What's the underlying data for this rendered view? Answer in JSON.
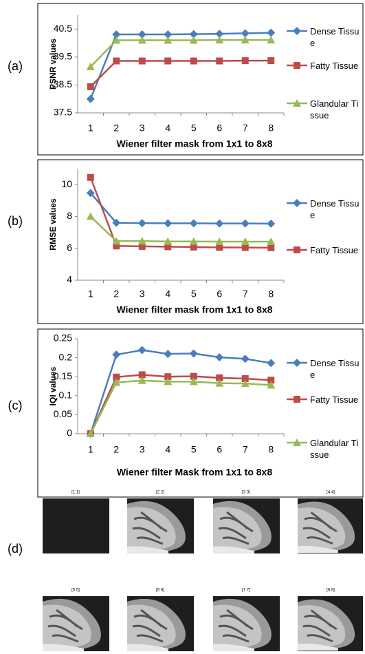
{
  "panel_labels": [
    "(a)",
    "(b)",
    "(c)",
    "(d)"
  ],
  "chart_data": [
    {
      "type": "line",
      "y_label": "PSNR values",
      "x_label": "Wiener filter mask from 1x1 to 8x8",
      "categories": [
        "1",
        "2",
        "3",
        "4",
        "5",
        "6",
        "7",
        "8"
      ],
      "ylim": [
        37.5,
        41
      ],
      "yticks": [
        37.5,
        38.5,
        39.5,
        40.5
      ],
      "series": [
        {
          "name": "Dense Tissue",
          "color": "#4a7ebb",
          "marker": "diamond",
          "values": [
            38.0,
            40.31,
            40.31,
            40.31,
            40.32,
            40.33,
            40.35,
            40.37
          ]
        },
        {
          "name": "Fatty Tissue",
          "color": "#be4b48",
          "marker": "square",
          "values": [
            38.44,
            39.36,
            39.36,
            39.36,
            39.36,
            39.36,
            39.37,
            39.37
          ]
        },
        {
          "name": "Glandular Tissue",
          "color": "#98b954",
          "marker": "triangle",
          "values": [
            39.15,
            40.1,
            40.1,
            40.1,
            40.1,
            40.11,
            40.11,
            40.11
          ]
        }
      ]
    },
    {
      "type": "line",
      "y_label": "RMSE values",
      "x_label": "Wiener filter mask from 1x1 to 8x8",
      "categories": [
        "1",
        "2",
        "3",
        "4",
        "5",
        "6",
        "7",
        "8"
      ],
      "ylim": [
        4,
        11
      ],
      "yticks": [
        4,
        6,
        8,
        10
      ],
      "series": [
        {
          "name": "Dense Tissue",
          "color": "#4a7ebb",
          "marker": "diamond",
          "values": [
            9.47,
            7.6,
            7.58,
            7.57,
            7.57,
            7.56,
            7.56,
            7.55
          ]
        },
        {
          "name": "Fatty Tissue",
          "color": "#be4b48",
          "marker": "square",
          "values": [
            10.45,
            6.15,
            6.12,
            6.1,
            6.08,
            6.06,
            6.05,
            6.04
          ]
        },
        {
          "color": "#98b954",
          "marker": "triangle",
          "values": [
            8.0,
            6.45,
            6.45,
            6.43,
            6.43,
            6.42,
            6.42,
            6.42
          ]
        }
      ]
    },
    {
      "type": "line",
      "y_label": "IQI values",
      "x_label": "Wiener filter Mask from 1x1 to 8x8",
      "categories": [
        "1",
        "2",
        "3",
        "4",
        "5",
        "6",
        "7",
        "8"
      ],
      "ylim": [
        0,
        0.25
      ],
      "yticks": [
        0,
        0.05,
        0.1,
        0.15,
        0.2,
        0.25
      ],
      "series": [
        {
          "name": "Dense Tissue",
          "color": "#4a7ebb",
          "marker": "diamond",
          "values": [
            0,
            0.208,
            0.22,
            0.21,
            0.211,
            0.201,
            0.197,
            0.186
          ]
        },
        {
          "name": "Fatty Tissue",
          "color": "#be4b48",
          "marker": "square",
          "values": [
            0,
            0.149,
            0.155,
            0.15,
            0.151,
            0.147,
            0.145,
            0.141
          ]
        },
        {
          "name": "Glandular Tissue",
          "color": "#98b954",
          "marker": "triangle",
          "values": [
            0,
            0.135,
            0.14,
            0.137,
            0.137,
            0.133,
            0.132,
            0.128
          ]
        }
      ]
    }
  ],
  "image_grid": {
    "titles": [
      "[1 1]",
      "[2 2]",
      "[3 3]",
      "[4 4]",
      "[5 5]",
      "[6 6]",
      "[7 7]",
      "[8 8]"
    ]
  }
}
